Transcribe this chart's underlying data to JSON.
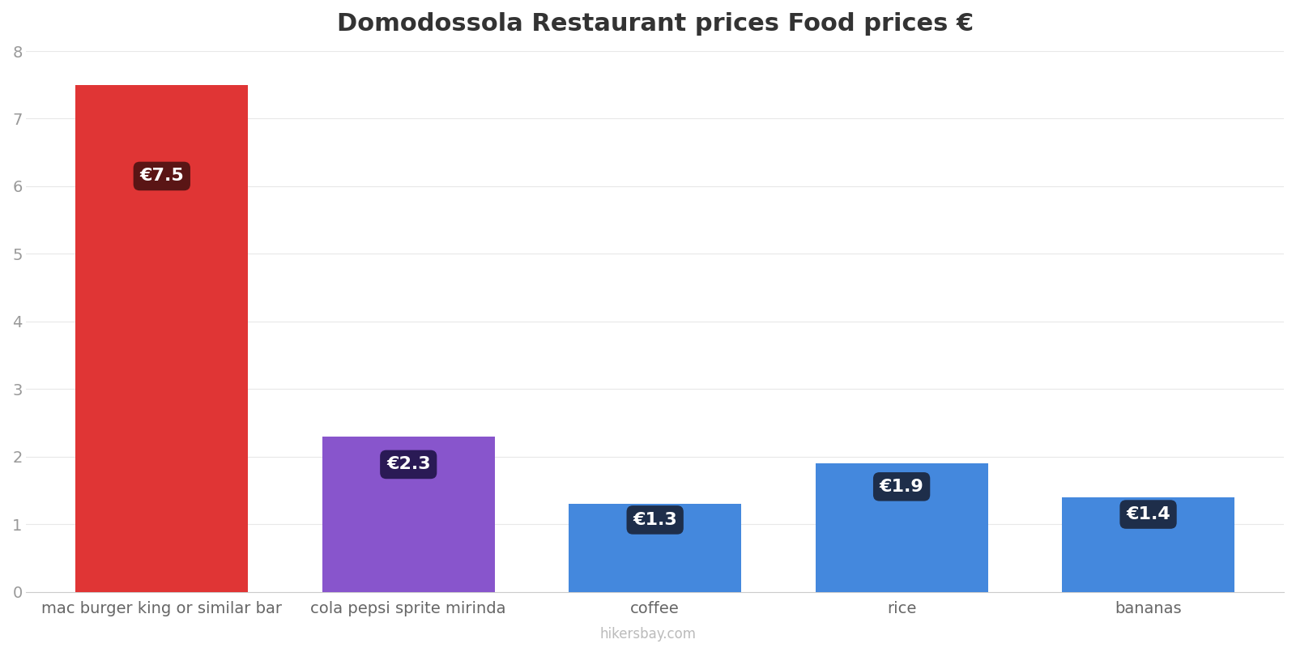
{
  "title": "Domodossola Restaurant prices Food prices €",
  "categories": [
    "mac burger king or similar bar",
    "cola pepsi sprite mirinda",
    "coffee",
    "rice",
    "bananas"
  ],
  "values": [
    7.5,
    2.3,
    1.3,
    1.9,
    1.4
  ],
  "bar_colors": [
    "#e03535",
    "#8855cc",
    "#4488dd",
    "#4488dd",
    "#4488dd"
  ],
  "label_bg_colors": [
    "#5a1515",
    "#2a1a55",
    "#1e2e4a",
    "#1e2e4a",
    "#1e2e4a"
  ],
  "labels": [
    "€7.5",
    "€2.3",
    "€1.3",
    "€1.9",
    "€1.4"
  ],
  "ylim": [
    0,
    8
  ],
  "yticks": [
    0,
    1,
    2,
    3,
    4,
    5,
    6,
    7,
    8
  ],
  "background_color": "#ffffff",
  "title_fontsize": 22,
  "tick_fontsize": 14,
  "label_fontsize": 16,
  "watermark": "hikersbay.com",
  "bar_width": 0.7
}
